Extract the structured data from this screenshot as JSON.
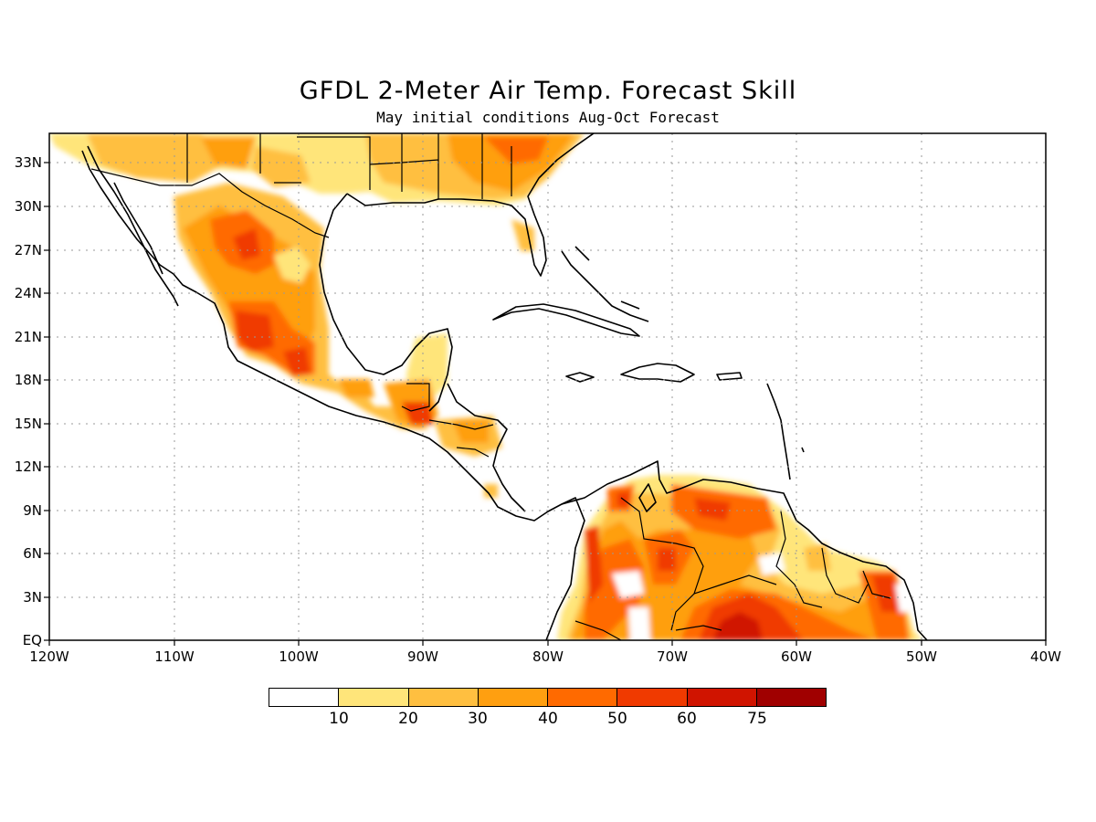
{
  "title": "GFDL 2-Meter Air Temp. Forecast Skill",
  "subtitle": "May initial conditions   Aug-Oct Forecast",
  "lat_labels": [
    "33N",
    "30N",
    "27N",
    "24N",
    "21N",
    "18N",
    "15N",
    "12N",
    "9N",
    "6N",
    "3N",
    "EQ"
  ],
  "lon_labels": [
    "120W",
    "110W",
    "100W",
    "90W",
    "80W",
    "70W",
    "60W",
    "50W",
    "40W"
  ],
  "colorbar": {
    "labels": [
      "10",
      "20",
      "30",
      "40",
      "50",
      "60",
      "75"
    ],
    "colors": [
      "#ffffff",
      "#ffe57a",
      "#ffbf40",
      "#ff9f10",
      "#ff6a00",
      "#f03a00",
      "#d01400",
      "#a00000"
    ]
  }
}
